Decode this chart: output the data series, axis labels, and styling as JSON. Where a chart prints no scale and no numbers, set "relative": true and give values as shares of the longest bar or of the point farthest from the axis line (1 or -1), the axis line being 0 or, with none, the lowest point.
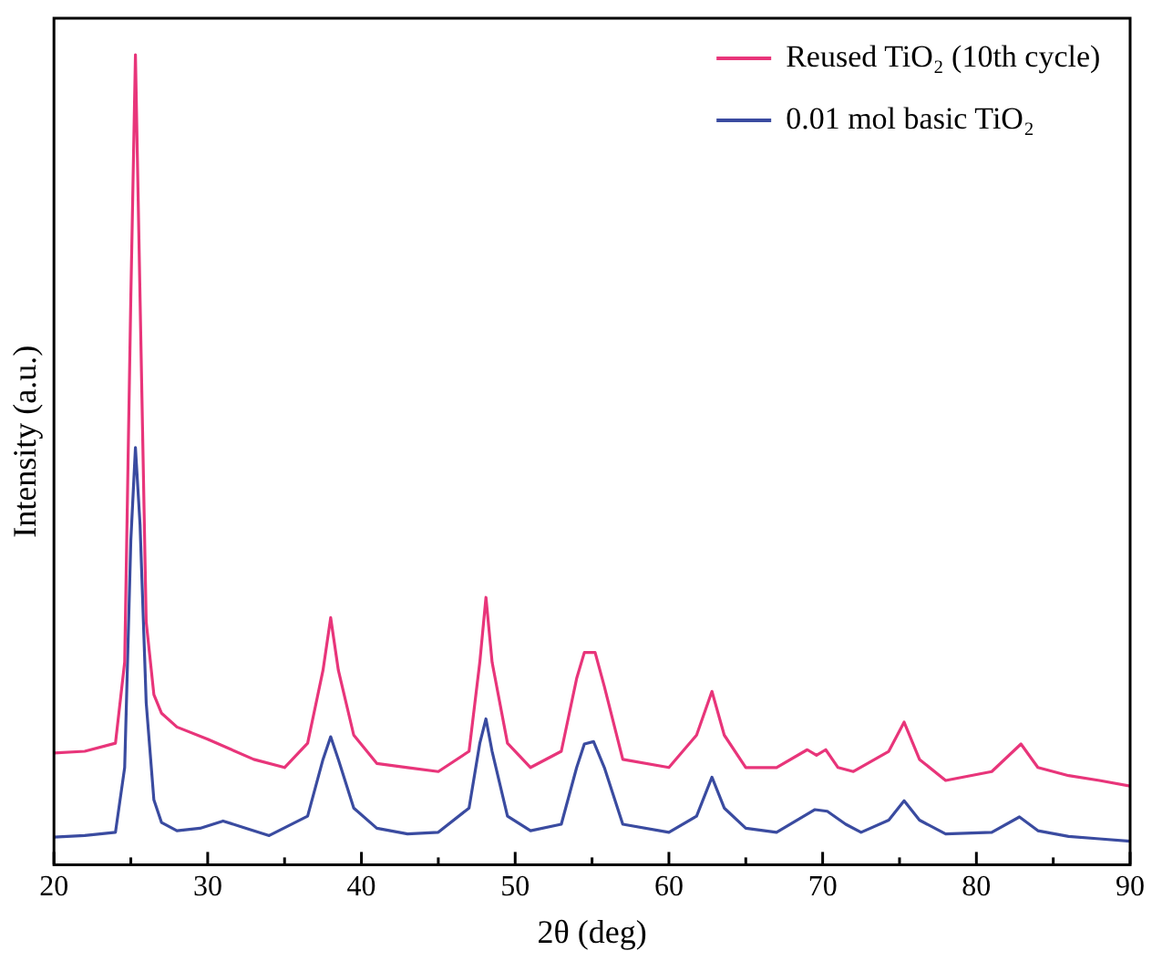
{
  "chart_data": {
    "type": "line",
    "relative": true,
    "xlabel": "2θ (deg)",
    "ylabel": "Intensity (a.u.)",
    "xlim": [
      20,
      90
    ],
    "xticks": [
      20,
      {
        "value": 25,
        "label": null
      },
      30,
      {
        "value": 35,
        "label": null
      },
      40,
      {
        "value": 45,
        "label": null
      },
      50,
      {
        "value": 55,
        "label": null
      },
      60,
      {
        "value": 65,
        "label": null
      },
      70,
      {
        "value": 75,
        "label": null
      },
      80,
      {
        "value": 85,
        "label": null
      },
      90
    ],
    "grid": false,
    "legend": "top right",
    "marker": "none",
    "line_style": "solid",
    "series": [
      {
        "name": "Reused TiO₂ (10th cycle)",
        "color": "#e8357a",
        "x": [
          20,
          22,
          24,
          24.6,
          25,
          25.3,
          25.6,
          26,
          26.5,
          27,
          28,
          30,
          33,
          35,
          36.5,
          37.5,
          38,
          38.5,
          39.5,
          41,
          43,
          45,
          47,
          47.7,
          48.1,
          48.5,
          49.5,
          51,
          53,
          54,
          54.5,
          55.2,
          55.8,
          57,
          60,
          61.8,
          62.8,
          63.6,
          65,
          67,
          69,
          69.6,
          70.2,
          71,
          72,
          74.3,
          75.3,
          76.3,
          78,
          81,
          82.9,
          84,
          86,
          88,
          90
        ],
        "values": [
          0.138,
          0.14,
          0.15,
          0.25,
          0.7,
          1.0,
          0.7,
          0.3,
          0.21,
          0.187,
          0.17,
          0.155,
          0.13,
          0.12,
          0.15,
          0.24,
          0.305,
          0.24,
          0.16,
          0.125,
          0.12,
          0.115,
          0.14,
          0.25,
          0.33,
          0.25,
          0.15,
          0.12,
          0.14,
          0.23,
          0.262,
          0.262,
          0.22,
          0.13,
          0.12,
          0.16,
          0.214,
          0.16,
          0.12,
          0.12,
          0.142,
          0.135,
          0.142,
          0.12,
          0.115,
          0.14,
          0.176,
          0.13,
          0.104,
          0.115,
          0.149,
          0.12,
          0.11,
          0.104,
          0.097
        ]
      },
      {
        "name": "0.01 mol basic TiO₂",
        "color": "#3a4ba0",
        "x": [
          20,
          22,
          24,
          24.6,
          25,
          25.3,
          25.6,
          26,
          26.5,
          27,
          28,
          29.5,
          31,
          32.5,
          34,
          36.5,
          37.5,
          38,
          38.5,
          39.5,
          41,
          43,
          45,
          47,
          47.7,
          48.1,
          48.5,
          49.5,
          51,
          53,
          54,
          54.5,
          55.1,
          55.8,
          57,
          60,
          61.8,
          62.8,
          63.6,
          65,
          67,
          69.5,
          70.3,
          71.5,
          72.5,
          74.3,
          75.3,
          76.3,
          78,
          81,
          82.8,
          84,
          86,
          88,
          90
        ],
        "values": [
          0.034,
          0.036,
          0.04,
          0.12,
          0.4,
          0.515,
          0.42,
          0.2,
          0.08,
          0.052,
          0.042,
          0.045,
          0.054,
          0.045,
          0.036,
          0.06,
          0.13,
          0.158,
          0.13,
          0.07,
          0.045,
          0.038,
          0.04,
          0.07,
          0.15,
          0.18,
          0.14,
          0.06,
          0.042,
          0.05,
          0.12,
          0.149,
          0.152,
          0.12,
          0.05,
          0.04,
          0.06,
          0.108,
          0.07,
          0.045,
          0.04,
          0.068,
          0.066,
          0.05,
          0.04,
          0.055,
          0.079,
          0.055,
          0.038,
          0.04,
          0.059,
          0.042,
          0.035,
          0.032,
          0.029
        ]
      }
    ]
  }
}
